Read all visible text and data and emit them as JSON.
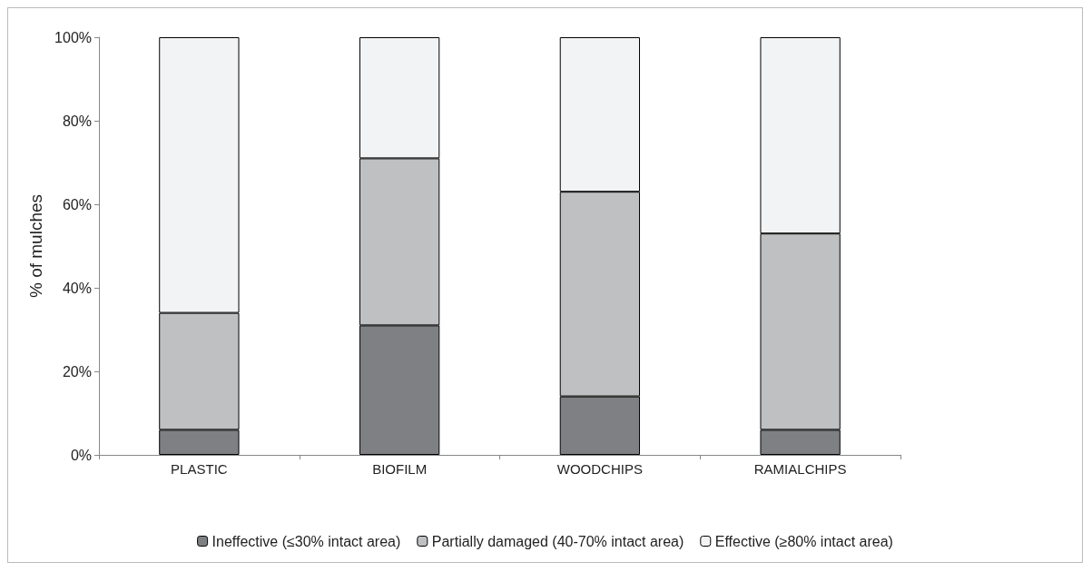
{
  "chart_data": {
    "type": "bar",
    "stacked": true,
    "ylabel": "% of mulches",
    "categories": [
      "PLASTIC",
      "BIOFILM",
      "WOODCHIPS",
      "RAMIALCHIPS"
    ],
    "series": [
      {
        "name": "Ineffective (≤30% intact area)",
        "color": "#7f8084",
        "values": [
          6,
          31,
          14,
          6
        ]
      },
      {
        "name": "Partially damaged (40-70% intact area)",
        "color": "#bfc0c2",
        "values": [
          28,
          40,
          49,
          47
        ]
      },
      {
        "name": "Effective (≥80% intact area)",
        "color": "#f2f3f4",
        "values": [
          66,
          29,
          37,
          47
        ]
      }
    ],
    "ylim": [
      0,
      100
    ],
    "yticks": [
      {
        "value": 0,
        "label": "0%"
      },
      {
        "value": 20,
        "label": "20%"
      },
      {
        "value": 40,
        "label": "40%"
      },
      {
        "value": 60,
        "label": "60%"
      },
      {
        "value": 80,
        "label": "80%"
      },
      {
        "value": 100,
        "label": "100%"
      }
    ],
    "grid": false,
    "legend": "bottom"
  }
}
